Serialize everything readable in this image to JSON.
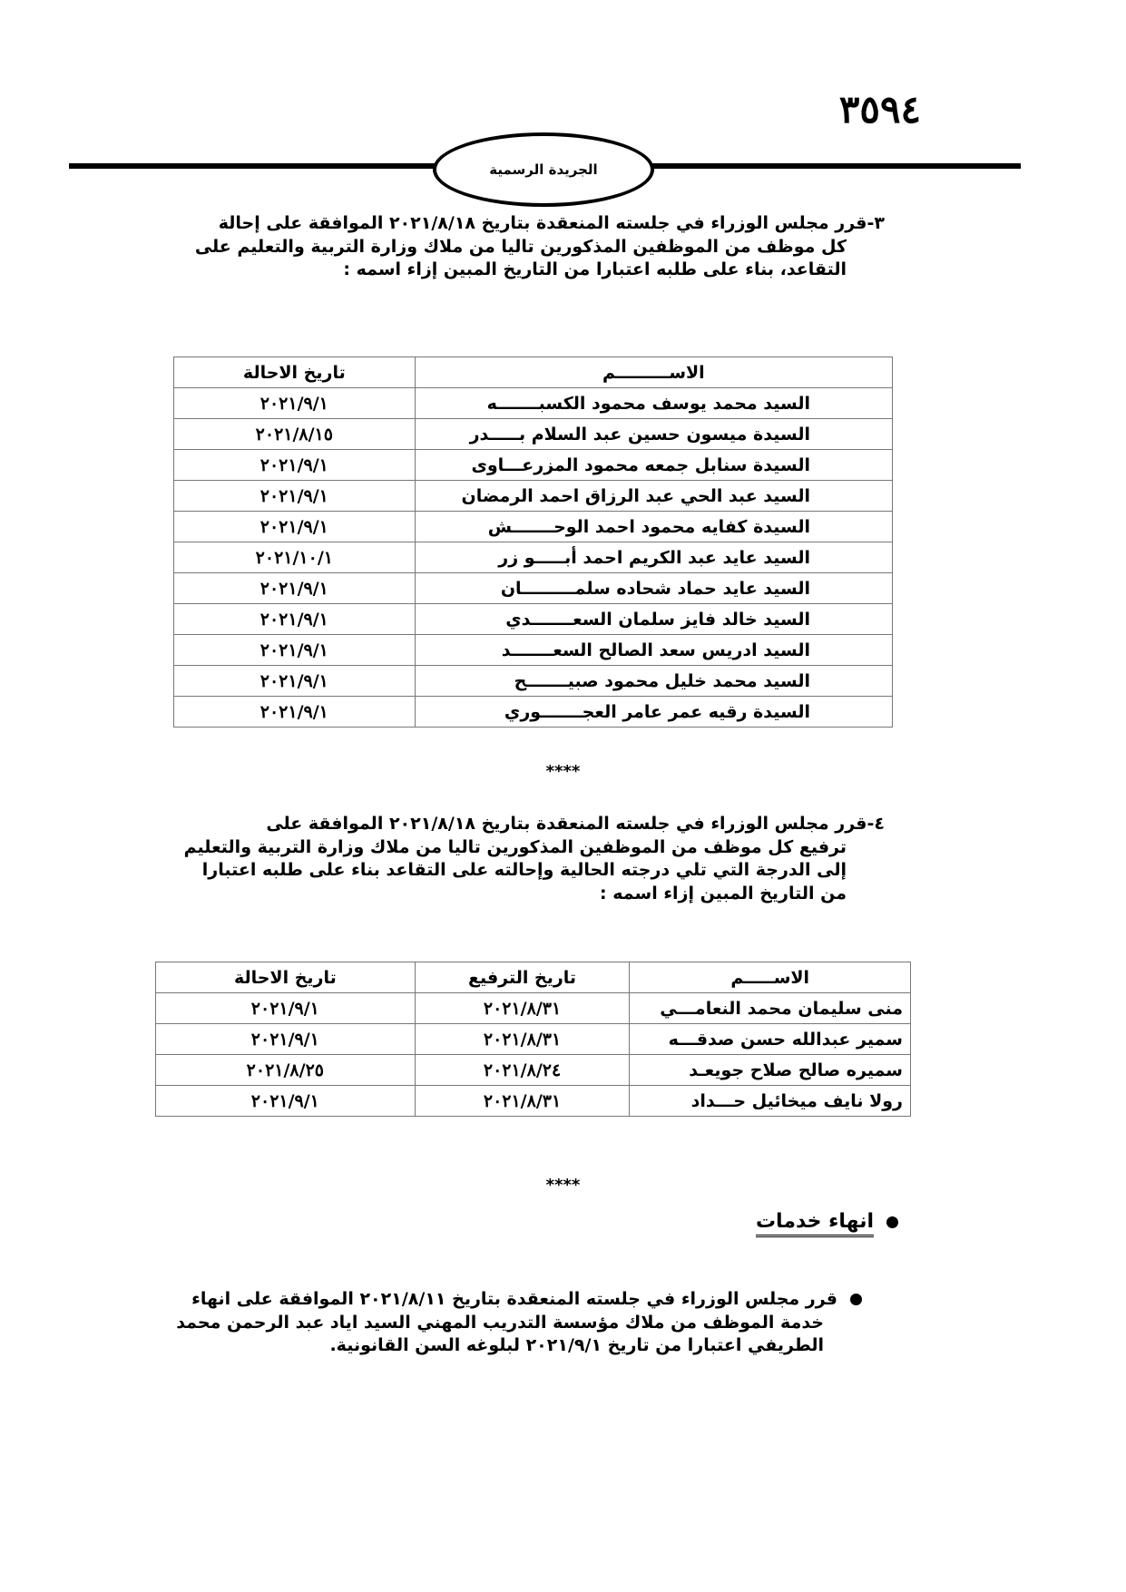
{
  "header": {
    "page_number": "٣٥٩٤",
    "publication": "الجريدة الرسمية"
  },
  "section3": {
    "number": "٣-",
    "lines": [
      "قرر مجلس الوزراء في جلسته المنعقدة بتاريخ ٢٠٢١/٨/١٨ الموافقة على إحالة",
      "كل موظف من الموظفين المذكورين تاليا من ملاك وزارة التربية والتعليم على",
      "التقاعد، بناء على طلبه اعتبارا من التاريخ المبين إزاء اسمه :"
    ],
    "table": {
      "headers": [
        "الاســـــــــم",
        "تاريخ الاحالة"
      ],
      "rows": [
        [
          "السيد محمد يوسف محمود الكسبـــــــه",
          "٢٠٢١/٩/١"
        ],
        [
          "السيدة ميسون حسين عبد السلام بـــــدر",
          "٢٠٢١/٨/١٥"
        ],
        [
          "السيدة سنابل جمعه محمود المزرعـــاوى",
          "٢٠٢١/٩/١"
        ],
        [
          "السيد عبد الحي عبد الرزاق احمد الرمضان",
          "٢٠٢١/٩/١"
        ],
        [
          "السيدة كفايه محمود احمد الوحـــــــش",
          "٢٠٢١/٩/١"
        ],
        [
          "السيد عايد عبد الكريم احمد أبـــــو زر",
          "٢٠٢١/١٠/١"
        ],
        [
          "السيد عايد حماد شحاده سلمـــــــــان",
          "٢٠٢١/٩/١"
        ],
        [
          "السيد خالد فايز سلمان السعـــــــدي",
          "٢٠٢١/٩/١"
        ],
        [
          "السيد ادريس سعد الصالح السعـــــــد",
          "٢٠٢١/٩/١"
        ],
        [
          "السيد محمد خليل محمود صبيـــــــح",
          "٢٠٢١/٩/١"
        ],
        [
          "السيدة رقيه عمر عامر العجـــــــوري",
          "٢٠٢١/٩/١"
        ]
      ]
    }
  },
  "separator": "****",
  "section4": {
    "number": "٤-",
    "lines": [
      "قرر مجلس الوزراء في جلسته المنعقدة بتاريخ ٢٠٢١/٨/١٨ الموافقة على",
      "ترفيع كل موظف من الموظفين المذكورين تاليا من ملاك وزارة التربية والتعليم",
      "إلى الدرجة التي تلي درجته الحالية وإحالته على التقاعد بناء على طلبه اعتبارا",
      "من التاريخ المبين إزاء اسمه :"
    ],
    "table": {
      "headers": [
        "الاســـــم",
        "تاريخ الترفيع",
        "تاريخ الاحالة"
      ],
      "rows": [
        [
          "منى سليمان محمد النعامـــي",
          "٢٠٢١/٨/٣١",
          "٢٠٢١/٩/١"
        ],
        [
          "سمير عبدالله حسن صدقـــه",
          "٢٠٢١/٨/٣١",
          "٢٠٢١/٩/١"
        ],
        [
          "سميره صالح صلاح جويعـد",
          "٢٠٢١/٨/٢٤",
          "٢٠٢١/٨/٢٥"
        ],
        [
          "رولا نايف ميخائيل حـــداد",
          "٢٠٢١/٨/٣١",
          "٢٠٢١/٩/١"
        ]
      ]
    }
  },
  "termination": {
    "heading": "انهاء خدمات",
    "lines": [
      "قرر مجلس الوزراء في جلسته المنعقدة بتاريخ ٢٠٢١/٨/١١ الموافقة على انهاء",
      "خدمة الموظف من ملاك مؤسسة التدريب المهني السيد اياد عبد الرحمن محمد",
      "الطريفي اعتبارا من تاريخ ٢٠٢١/٩/١ لبلوغه السن القانونية."
    ]
  }
}
